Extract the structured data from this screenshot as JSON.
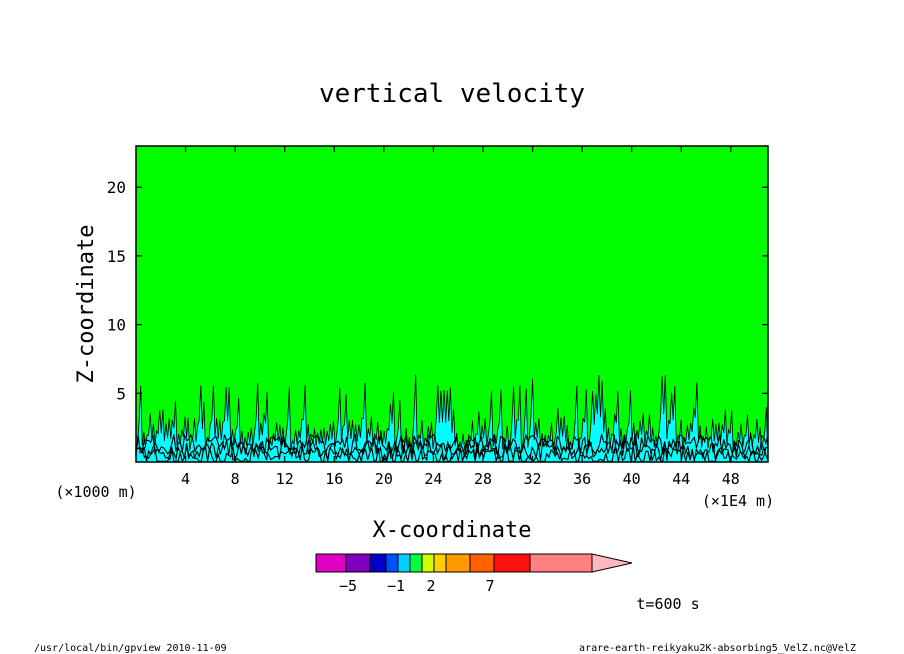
{
  "chart_data": {
    "type": "heatmap",
    "title": "vertical velocity",
    "xlabel": "X-coordinate",
    "ylabel": "Z-coordinate",
    "x_unit_left": "(×1000 m)",
    "x_unit_right": "(×1E4 m)",
    "xlim": [
      0,
      51
    ],
    "ylim": [
      0,
      23
    ],
    "x_ticks": [
      "4",
      "8",
      "12",
      "16",
      "20",
      "24",
      "28",
      "32",
      "36",
      "40",
      "44",
      "48"
    ],
    "y_ticks": [
      "5",
      "10",
      "15",
      "20"
    ],
    "background_level_color": "#00ff00",
    "updraft_color": "#00ffff",
    "contour_line_color": "#000000",
    "colorbar": {
      "colors": [
        "#e000c0",
        "#8000c0",
        "#0000c8",
        "#0050ff",
        "#00d0ff",
        "#00ff40",
        "#d0ff00",
        "#ffd000",
        "#ff9a00",
        "#ff6000",
        "#ff1010",
        "#ff8080",
        "#ffb8c0"
      ],
      "labels": [
        "−5",
        "−1",
        "2",
        "7"
      ]
    },
    "time_label": "t=600 s"
  },
  "footer": {
    "left": "/usr/local/bin/gpview  2010-11-09",
    "right": "arare-earth-reikyaku2K-absorbing5_VelZ.nc@VelZ"
  }
}
